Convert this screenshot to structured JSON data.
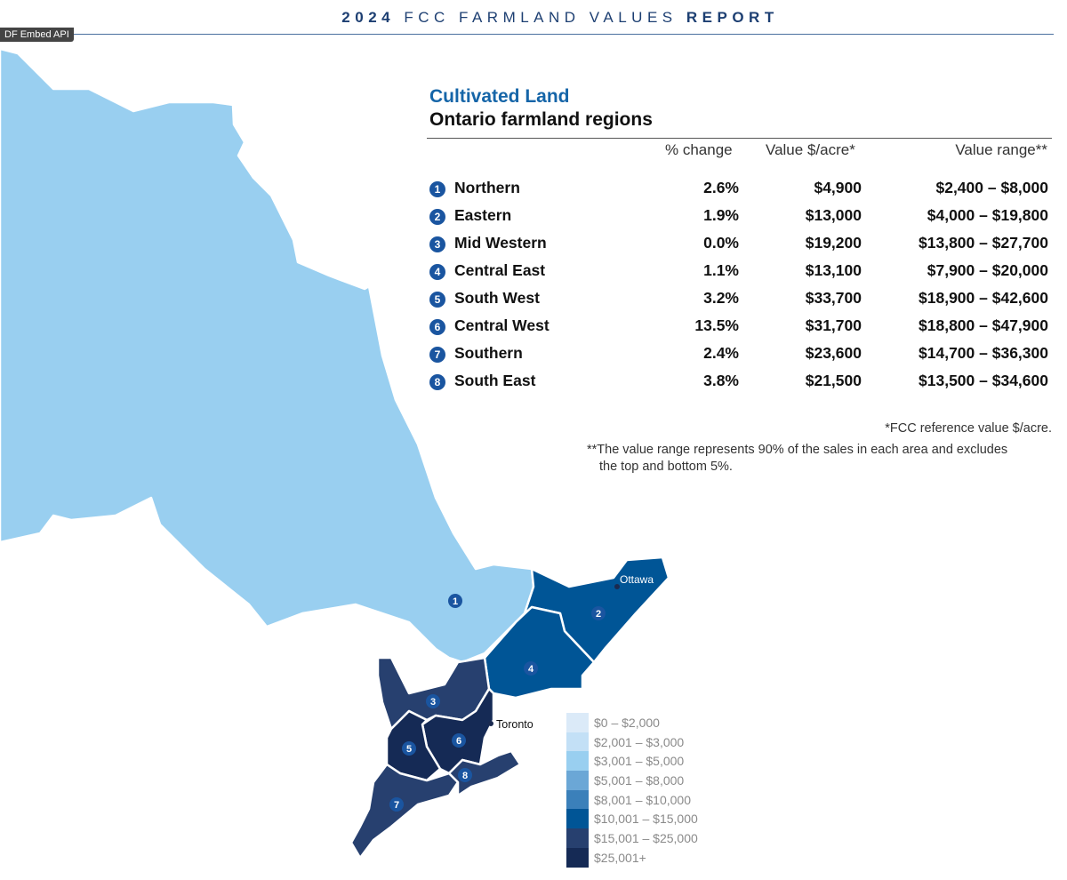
{
  "header": {
    "year": "2024",
    "middle": "FCC FARMLAND VALUES",
    "end": "REPORT"
  },
  "tooltip": "DF Embed API",
  "title": "Cultivated Land",
  "subtitle": "Ontario farmland regions",
  "columns": [
    "% change",
    "Value $/acre*",
    "Value range**"
  ],
  "regions": [
    {
      "n": "1",
      "name": "Northern",
      "change": "2.6%",
      "value": "$4,900",
      "range": "$2,400 – $8,000",
      "color": "#99cff0"
    },
    {
      "n": "2",
      "name": "Eastern",
      "change": "1.9%",
      "value": "$13,000",
      "range": "$4,000 – $19,800",
      "color": "#005596"
    },
    {
      "n": "3",
      "name": "Mid Western",
      "change": "0.0%",
      "value": "$19,200",
      "range": "$13,800 – $27,700",
      "color": "#27406f"
    },
    {
      "n": "4",
      "name": "Central East",
      "change": "1.1%",
      "value": "$13,100",
      "range": "$7,900 – $20,000",
      "color": "#005596"
    },
    {
      "n": "5",
      "name": "South West",
      "change": "3.2%",
      "value": "$33,700",
      "range": "$18,900 – $42,600",
      "color": "#152a55"
    },
    {
      "n": "6",
      "name": "Central West",
      "change": "13.5%",
      "value": "$31,700",
      "range": "$18,800 – $47,900",
      "color": "#152a55"
    },
    {
      "n": "7",
      "name": "Southern",
      "change": "2.4%",
      "value": "$23,600",
      "range": "$14,700 – $36,300",
      "color": "#27406f"
    },
    {
      "n": "8",
      "name": "South East",
      "change": "3.8%",
      "value": "$21,500",
      "range": "$13,500 – $34,600",
      "color": "#27406f"
    }
  ],
  "notes": {
    "ref": "*FCC reference value $/acre.",
    "range1": "**The value range represents 90% of the sales in each area and excludes",
    "range2": "the top and bottom 5%."
  },
  "cities": {
    "ottawa": "Ottawa",
    "toronto": "Toronto"
  },
  "legend": [
    {
      "label": "$0 – $2,000",
      "color": "#dbeaf8"
    },
    {
      "label": "$2,001 – $3,000",
      "color": "#c3e0f6"
    },
    {
      "label": "$3,001 – $5,000",
      "color": "#99cff0"
    },
    {
      "label": "$5,001 – $8,000",
      "color": "#6ba7d6"
    },
    {
      "label": "$8,001 – $10,000",
      "color": "#3b80ba"
    },
    {
      "label": "$10,001 – $15,000",
      "color": "#005596"
    },
    {
      "label": "$15,001 – $25,000",
      "color": "#27406f"
    },
    {
      "label": "$25,001+",
      "color": "#152a55"
    }
  ]
}
